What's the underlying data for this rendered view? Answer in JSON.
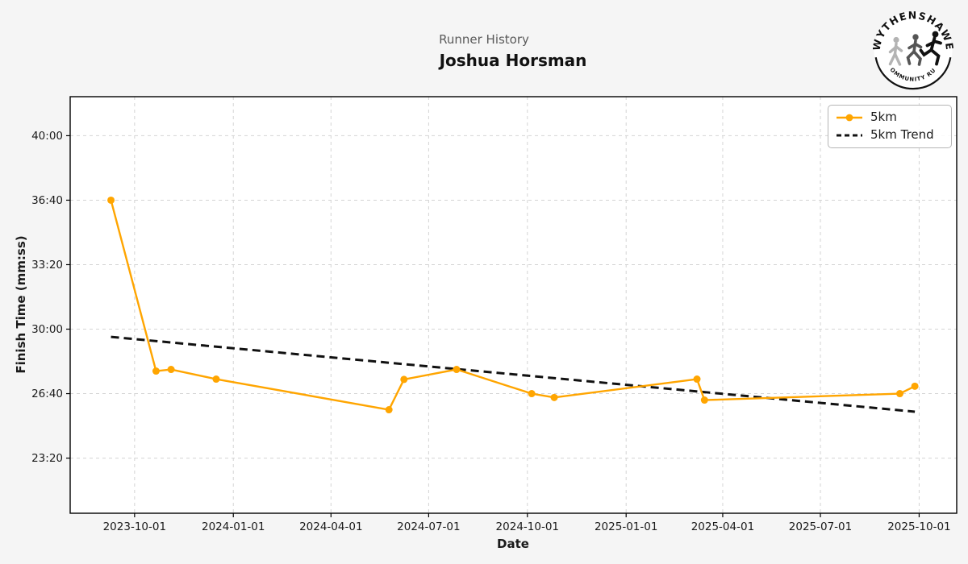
{
  "header": {
    "subtitle": "Runner History",
    "title": "Joshua Horsman"
  },
  "logo": {
    "top_text": "WYTHENSHAWE",
    "bottom_text": "COMMUNITY RUN"
  },
  "colors": {
    "figure_background": "#f5f5f5",
    "plot_background": "#ffffff",
    "series_5km": "#FFA500",
    "trend": "#111111",
    "grid": "#d4d4d4",
    "axis": "#000000",
    "tick_text": "#1a1a1a",
    "subtitle_text": "#5a5a5a"
  },
  "chart_data": {
    "type": "line",
    "title": "Joshua Horsman",
    "subtitle": "Runner History",
    "xlabel": "Date",
    "ylabel": "Finish Time (mm:ss)",
    "grid": true,
    "legend_position": "upper right",
    "xlim": [
      "2023-08-02",
      "2025-11-05"
    ],
    "ylim_seconds": [
      1229,
      2521
    ],
    "x_ticks": [
      "2023-10-01",
      "2024-01-01",
      "2024-04-01",
      "2024-07-01",
      "2024-10-01",
      "2025-01-01",
      "2025-04-01",
      "2025-07-01",
      "2025-10-01"
    ],
    "y_ticks": [
      "23:20",
      "26:40",
      "30:00",
      "33:20",
      "36:40",
      "40:00"
    ],
    "series": [
      {
        "name": "5km",
        "color": "#FFA500",
        "marker": "circle",
        "points": [
          {
            "date": "2023-09-09",
            "time": "36:40"
          },
          {
            "date": "2023-10-21",
            "time": "27:50"
          },
          {
            "date": "2023-11-04",
            "time": "27:55"
          },
          {
            "date": "2023-12-16",
            "time": "27:25"
          },
          {
            "date": "2024-05-25",
            "time": "25:50"
          },
          {
            "date": "2024-06-08",
            "time": "27:24"
          },
          {
            "date": "2024-07-27",
            "time": "27:55"
          },
          {
            "date": "2024-10-05",
            "time": "26:40"
          },
          {
            "date": "2024-10-26",
            "time": "26:28"
          },
          {
            "date": "2025-03-08",
            "time": "27:25"
          },
          {
            "date": "2025-03-15",
            "time": "26:20"
          },
          {
            "date": "2025-09-13",
            "time": "26:40"
          },
          {
            "date": "2025-09-27",
            "time": "27:03"
          }
        ]
      }
    ],
    "trend": {
      "name": "5km Trend",
      "color": "#111111",
      "style": "dashed",
      "start": {
        "date": "2023-09-09",
        "time": "29:36"
      },
      "end": {
        "date": "2025-09-27",
        "time": "25:44"
      }
    }
  }
}
